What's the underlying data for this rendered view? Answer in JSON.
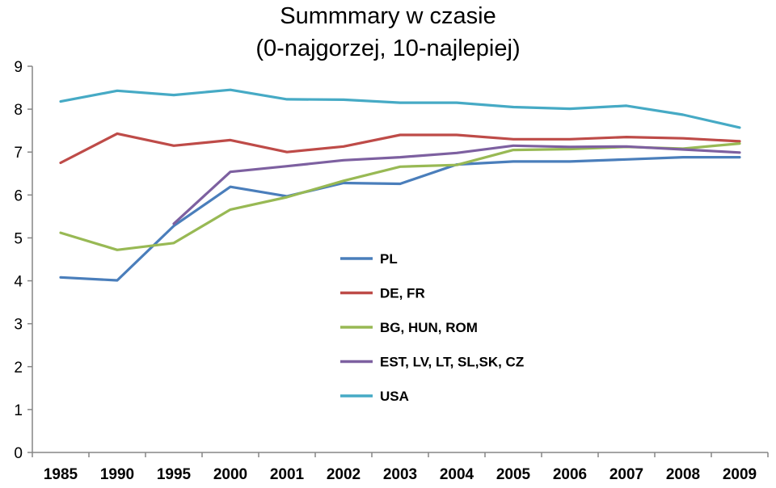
{
  "chart_data": {
    "type": "line",
    "title_line1": "Summmary w czasie",
    "title_line2": "(0-najgorzej, 10-najlepiej)",
    "xlabel": "",
    "ylabel": "",
    "categories": [
      "1985",
      "1990",
      "1995",
      "2000",
      "2001",
      "2002",
      "2003",
      "2004",
      "2005",
      "2006",
      "2007",
      "2008",
      "2009"
    ],
    "ylim": [
      0,
      9
    ],
    "yticks": [
      "0",
      "1",
      "2",
      "3",
      "4",
      "5",
      "6",
      "7",
      "8",
      "9"
    ],
    "grid": false,
    "legend_position": "center",
    "series": [
      {
        "name": "PL",
        "color": "#4a7ebb",
        "values": [
          4.08,
          4.01,
          5.28,
          6.19,
          5.97,
          6.28,
          6.26,
          6.71,
          6.78,
          6.78,
          6.83,
          6.88,
          6.88
        ]
      },
      {
        "name": "DE, FR",
        "color": "#be4b48",
        "values": [
          6.75,
          7.43,
          7.15,
          7.28,
          7.0,
          7.13,
          7.4,
          7.4,
          7.3,
          7.3,
          7.35,
          7.32,
          7.25
        ]
      },
      {
        "name": "BG, HUN, ROM",
        "color": "#98b954",
        "values": [
          5.12,
          4.72,
          4.88,
          5.66,
          5.95,
          6.33,
          6.66,
          6.7,
          7.05,
          7.07,
          7.12,
          7.08,
          7.2
        ]
      },
      {
        "name": "EST, LV, LT, SL,SK, CZ",
        "color": "#7d60a0",
        "values": [
          null,
          null,
          5.33,
          6.54,
          6.67,
          6.81,
          6.88,
          6.98,
          7.15,
          7.12,
          7.13,
          7.06,
          6.99
        ]
      },
      {
        "name": "USA",
        "color": "#46aac5",
        "values": [
          8.18,
          8.43,
          8.33,
          8.45,
          8.23,
          8.22,
          8.15,
          8.15,
          8.05,
          8.01,
          8.08,
          7.87,
          7.57
        ]
      }
    ]
  }
}
